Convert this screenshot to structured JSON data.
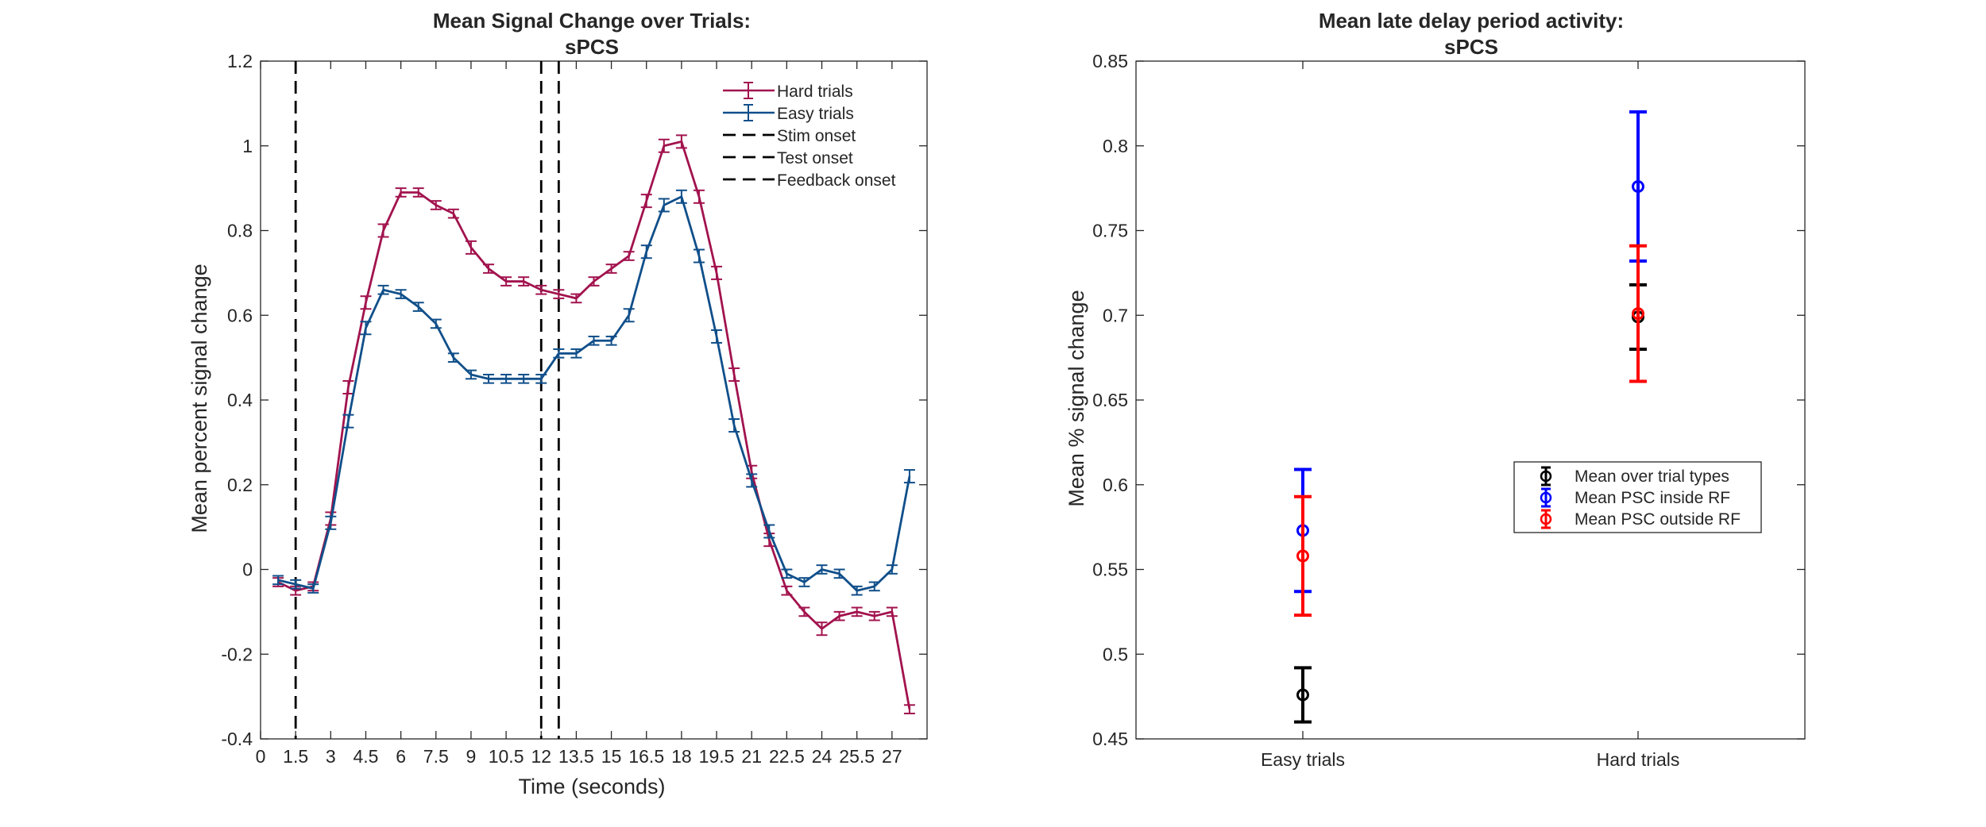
{
  "colors": {
    "hard": "#a2134e",
    "easy": "#104f8a",
    "vline": "#000000",
    "inside_rf": "#0000ff",
    "outside_rf": "#ff0000",
    "mean": "#000000"
  },
  "chart_data": [
    {
      "type": "line",
      "title": "Mean Signal Change over Trials:",
      "subtitle": "sPCS",
      "xlabel": "Time (seconds)",
      "ylabel": "Mean percent signal change",
      "xlim": [
        0,
        28.5
      ],
      "ylim": [
        -0.4,
        1.2
      ],
      "xticks": [
        0,
        1.5,
        3,
        4.5,
        6,
        7.5,
        9,
        10.5,
        12,
        13.5,
        15,
        16.5,
        18,
        19.5,
        21,
        22.5,
        24,
        25.5,
        27
      ],
      "xtick_labels": [
        "0",
        "1.5",
        "3",
        "4.5",
        "6",
        "7.5",
        "9",
        "10.5",
        "12",
        "13.5",
        "15",
        "16.5",
        "18",
        "19.5",
        "21",
        "22.5",
        "24",
        "25.5",
        "27"
      ],
      "yticks": [
        -0.4,
        -0.2,
        0,
        0.2,
        0.4,
        0.6,
        0.8,
        1,
        1.2
      ],
      "ytick_labels": [
        "-0.4",
        "-0.2",
        "0",
        "0.2",
        "0.4",
        "0.6",
        "0.8",
        "1",
        "1.2"
      ],
      "legend_position": "top-right",
      "grid": false,
      "x": [
        0.75,
        1.5,
        2.25,
        3,
        3.75,
        4.5,
        5.25,
        6,
        6.75,
        7.5,
        8.25,
        9,
        9.75,
        10.5,
        11.25,
        12,
        12.75,
        13.5,
        14.25,
        15,
        15.75,
        16.5,
        17.25,
        18,
        18.75,
        19.5,
        20.25,
        21,
        21.75,
        22.5,
        23.25,
        24,
        24.75,
        25.5,
        26.25,
        27,
        27.75
      ],
      "series": [
        {
          "name": "Hard trials",
          "color_key": "hard",
          "values": [
            -0.03,
            -0.05,
            -0.04,
            0.12,
            0.43,
            0.63,
            0.8,
            0.89,
            0.89,
            0.86,
            0.84,
            0.76,
            0.71,
            0.68,
            0.68,
            0.66,
            0.65,
            0.64,
            0.68,
            0.71,
            0.74,
            0.87,
            1.0,
            1.01,
            0.88,
            0.7,
            0.46,
            0.23,
            0.07,
            -0.05,
            -0.1,
            -0.14,
            -0.11,
            -0.1,
            -0.11,
            -0.1,
            -0.33
          ],
          "errors": [
            0.01,
            0.01,
            0.01,
            0.015,
            0.015,
            0.015,
            0.015,
            0.01,
            0.01,
            0.01,
            0.01,
            0.015,
            0.01,
            0.01,
            0.01,
            0.01,
            0.01,
            0.01,
            0.01,
            0.01,
            0.01,
            0.015,
            0.015,
            0.015,
            0.015,
            0.015,
            0.015,
            0.015,
            0.015,
            0.01,
            0.01,
            0.015,
            0.01,
            0.01,
            0.01,
            0.01,
            0.01
          ]
        },
        {
          "name": "Easy trials",
          "color_key": "easy",
          "values": [
            -0.025,
            -0.035,
            -0.045,
            0.11,
            0.35,
            0.57,
            0.66,
            0.65,
            0.62,
            0.58,
            0.5,
            0.46,
            0.45,
            0.45,
            0.45,
            0.45,
            0.51,
            0.51,
            0.54,
            0.54,
            0.6,
            0.75,
            0.86,
            0.88,
            0.74,
            0.55,
            0.34,
            0.21,
            0.09,
            -0.01,
            -0.03,
            0.0,
            -0.01,
            -0.05,
            -0.04,
            0.0,
            0.22
          ],
          "errors": [
            0.01,
            0.01,
            0.01,
            0.015,
            0.015,
            0.015,
            0.01,
            0.01,
            0.01,
            0.01,
            0.01,
            0.01,
            0.01,
            0.01,
            0.01,
            0.01,
            0.01,
            0.01,
            0.01,
            0.01,
            0.015,
            0.015,
            0.015,
            0.015,
            0.015,
            0.015,
            0.015,
            0.015,
            0.015,
            0.01,
            0.01,
            0.01,
            0.01,
            0.01,
            0.01,
            0.01,
            0.015
          ]
        }
      ],
      "vlines": [
        {
          "name": "Stim onset",
          "x": 1.5
        },
        {
          "name": "Test onset",
          "x": 12
        },
        {
          "name": "Feedback onset",
          "x": 12.75
        }
      ]
    },
    {
      "type": "scatter",
      "title": "Mean late delay period activity:",
      "subtitle": "sPCS",
      "xlabel": "",
      "ylabel": "Mean % signal change",
      "categories": [
        "Easy trials",
        "Hard trials"
      ],
      "ylim": [
        0.45,
        0.85
      ],
      "yticks": [
        0.45,
        0.5,
        0.55,
        0.6,
        0.65,
        0.7,
        0.75,
        0.8,
        0.85
      ],
      "ytick_labels": [
        "0.45",
        "0.5",
        "0.55",
        "0.6",
        "0.65",
        "0.7",
        "0.75",
        "0.8",
        "0.85"
      ],
      "legend_position": "right",
      "grid": false,
      "series": [
        {
          "name": "Mean over trial types",
          "color_key": "mean",
          "values": [
            0.476,
            0.699
          ],
          "errors": [
            0.016,
            0.019
          ]
        },
        {
          "name": "Mean PSC inside RF",
          "color_key": "inside_rf",
          "values": [
            0.573,
            0.776
          ],
          "errors": [
            0.036,
            0.044
          ]
        },
        {
          "name": "Mean PSC outside RF",
          "color_key": "outside_rf",
          "values": [
            0.558,
            0.701
          ],
          "errors": [
            0.035,
            0.04
          ]
        }
      ]
    }
  ]
}
